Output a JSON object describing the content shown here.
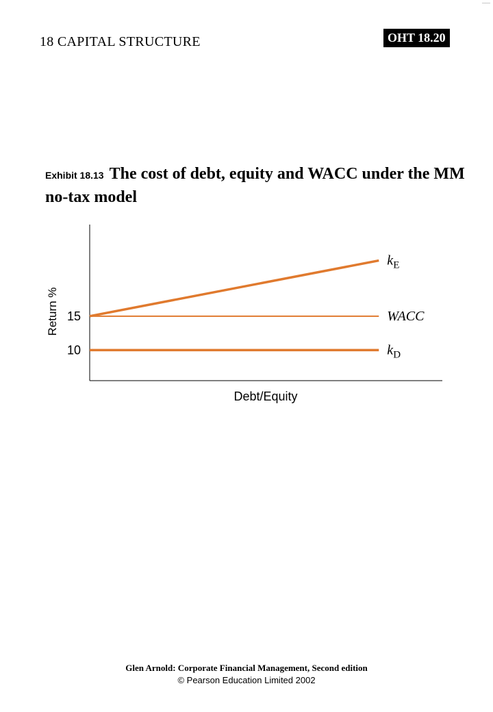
{
  "header": {
    "chapter": "18  CAPITAL STRUCTURE",
    "badge": "OHT 18.20",
    "corner_mark": "——"
  },
  "exhibit": {
    "number": "Exhibit 18.13",
    "title": "The cost of debt, equity and WACC under the MM no-tax model"
  },
  "chart_data": {
    "type": "line",
    "title": "The cost of debt, equity and WACC under the MM no-tax model",
    "xlabel": "Debt/Equity",
    "ylabel": "Return %",
    "y_ticks": [
      15,
      10
    ],
    "ylim": [
      5.5,
      28.5
    ],
    "xlim": [
      0,
      1
    ],
    "grid": false,
    "legend": "labels at line ends",
    "line_color": "#e07a2e",
    "series": [
      {
        "name": "kE",
        "symbol": "k",
        "subscript": "E",
        "x": [
          0,
          0.82
        ],
        "y": [
          15,
          23.2
        ]
      },
      {
        "name": "WACC",
        "symbol": "WACC",
        "subscript": "",
        "x": [
          0,
          0.82
        ],
        "y": [
          15,
          15
        ]
      },
      {
        "name": "kD",
        "symbol": "k",
        "subscript": "D",
        "x": [
          0,
          0.82
        ],
        "y": [
          10,
          10
        ]
      }
    ]
  },
  "footer": {
    "line1": "Glen Arnold: Corporate Financial Management, Second edition",
    "line2": "© Pearson Education Limited 2002"
  }
}
